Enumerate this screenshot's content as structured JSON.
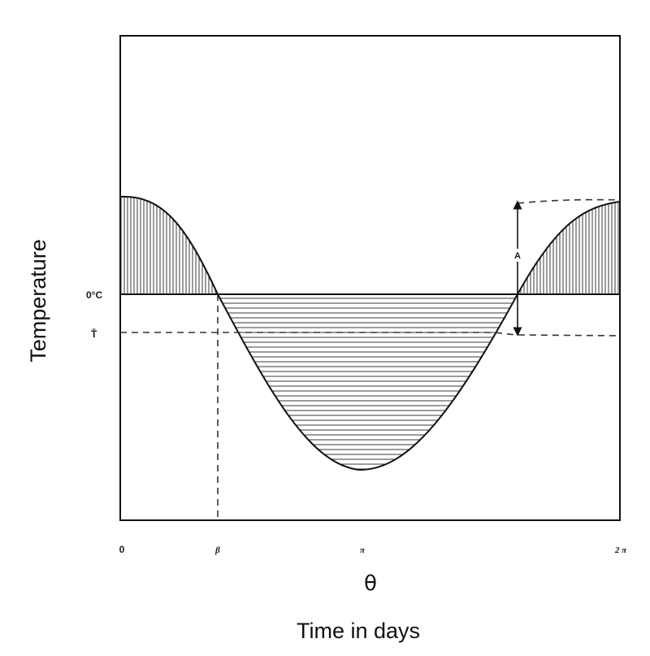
{
  "y_axis_label": "Temperature",
  "x_symbol": "θ",
  "x_caption": "Time in days",
  "level_labels": {
    "zero": "0°C",
    "mean": "T̄"
  },
  "x_ticks": {
    "origin": "0",
    "beta": "β",
    "pi": "π",
    "two_pi": "2 π"
  },
  "amplitude_label": "A"
}
